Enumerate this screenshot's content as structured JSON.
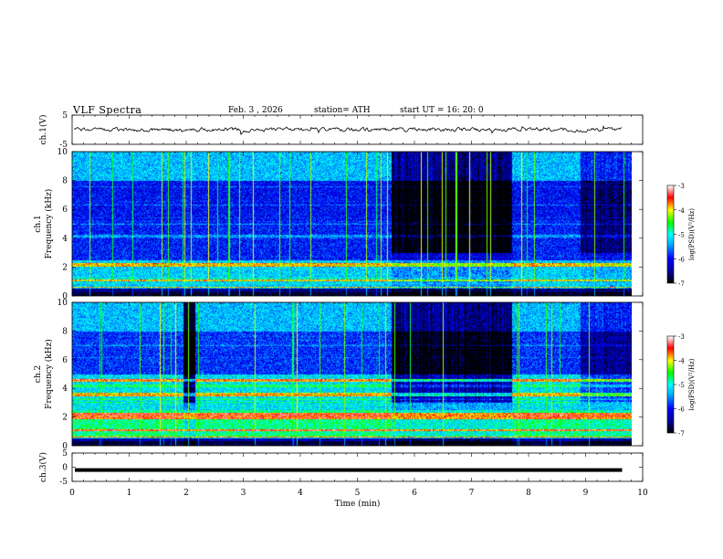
{
  "header": {
    "title": "VLF Spectra",
    "date": "Feb. 3 , 2026",
    "station": "station= ATH",
    "start_ut": "start UT = 16: 20: 0"
  },
  "chart_data": {
    "type": "heatmap",
    "xlabel": "Time (min)",
    "xlim": [
      0,
      10
    ],
    "xticks": [
      "0",
      "1",
      "2",
      "3",
      "4",
      "5",
      "6",
      "7",
      "8",
      "9",
      "10"
    ],
    "panels": [
      {
        "id": "ch1-waveform",
        "ylabel": "ch.1(V)",
        "ylim": [
          -5,
          5
        ],
        "yticks": [
          "5",
          "-5"
        ],
        "trace_level": 0
      },
      {
        "id": "ch1-spectrogram",
        "ylabel": "ch.1\nFrequency (kHz)",
        "ylim": [
          0,
          10
        ],
        "yticks": [
          "0",
          "2",
          "4",
          "6",
          "8",
          "10"
        ],
        "colorbar": {
          "label": "log(PSD)(V²/Hz)",
          "range": [
            -7,
            -3
          ],
          "ticks": [
            "-3",
            "-4",
            "-5",
            "-6",
            "-7"
          ]
        }
      },
      {
        "id": "ch2-spectrogram",
        "ylabel": "ch.2\nFrequency (kHz)",
        "ylim": [
          0,
          10
        ],
        "yticks": [
          "0",
          "2",
          "4",
          "6",
          "8",
          "10"
        ],
        "colorbar": {
          "label": "log(PSD)(V²/Hz)",
          "range": [
            -7,
            -3
          ],
          "ticks": [
            "-3",
            "-4",
            "-5",
            "-6",
            "-7"
          ]
        }
      },
      {
        "id": "ch3-waveform",
        "ylabel": "ch.3(V)",
        "ylim": [
          -5,
          5
        ],
        "yticks": [
          "5",
          "0",
          "-5"
        ],
        "trace_level": -1
      }
    ],
    "data_end_min": 9.8,
    "colors": {
      "palette": [
        "#000000",
        "#00008c",
        "#0000ff",
        "#00b4ff",
        "#00ffff",
        "#00ff00",
        "#ffff00",
        "#ff0000",
        "#ffffff"
      ]
    }
  }
}
